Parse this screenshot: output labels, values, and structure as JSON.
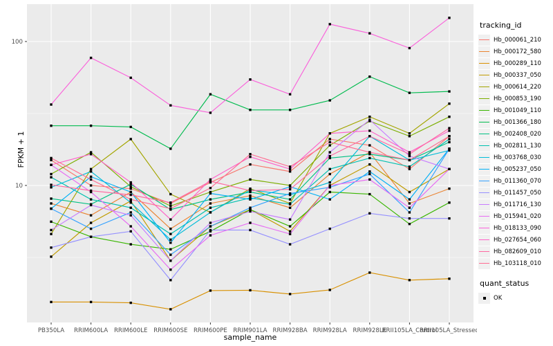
{
  "chart_data": {
    "type": "line",
    "title": "",
    "xlabel": "sample_name",
    "ylabel": "FPKM + 1",
    "y_scale": "log10",
    "ylim": [
      1.12,
      181
    ],
    "y_major_ticks": [
      10,
      100
    ],
    "y_tick_labels": [
      "10",
      "100"
    ],
    "y_minor_ticks": [
      3.162,
      31.62
    ],
    "grid": true,
    "panel_bg": "#EBEBEB",
    "grid_color": "#FFFFFF",
    "axis_text_color": "#4D4D4D",
    "point_shape": "black-square",
    "legend_position": "right",
    "legend_title": "tracking_id",
    "legend2_title": "quant_status",
    "quant_status_items": [
      "OK"
    ],
    "x_categories": [
      "PB350LA",
      "RRIM600LA",
      "RRIM600LE",
      "RRIM600SE",
      "RRIM600PE",
      "RRIM901LA",
      "RRIM928BA",
      "RRIM928LA",
      "RRIM928LE",
      "RRII105LA_Control",
      "RRII105LA_Stressed"
    ],
    "series": [
      {
        "name": "Hb_000061_210",
        "color": "#F8766D",
        "values": [
          15,
          10,
          9.5,
          7.5,
          10.5,
          14,
          12.5,
          21,
          19,
          13,
          22
        ]
      },
      {
        "name": "Hb_000172_580",
        "color": "#EA8331",
        "values": [
          7.5,
          6.2,
          9,
          5,
          7.5,
          8.5,
          7,
          12,
          17,
          7.5,
          9.5
        ]
      },
      {
        "name": "Hb_000289_110",
        "color": "#D89000",
        "values": [
          1.55,
          1.55,
          1.53,
          1.38,
          1.86,
          1.87,
          1.76,
          1.88,
          2.48,
          2.2,
          2.25
        ]
      },
      {
        "name": "Hb_000337_050",
        "color": "#C09B00",
        "values": [
          3.2,
          5.5,
          7.8,
          3,
          5.2,
          6.8,
          4.8,
          10,
          14,
          9,
          13
        ]
      },
      {
        "name": "Hb_000614_220",
        "color": "#A3A500",
        "values": [
          4.6,
          13,
          21,
          8.7,
          6.5,
          9.5,
          7.5,
          23,
          30,
          23,
          37
        ]
      },
      {
        "name": "Hb_000853_190",
        "color": "#7CAE00",
        "values": [
          12,
          17,
          9.8,
          7.2,
          9,
          11,
          10,
          19,
          28,
          22,
          30
        ]
      },
      {
        "name": "Hb_001049_110",
        "color": "#39B600",
        "values": [
          5.6,
          4.4,
          3.9,
          3.6,
          4.8,
          6.8,
          5.2,
          9,
          8.7,
          5.4,
          7.6
        ]
      },
      {
        "name": "Hb_001366_180",
        "color": "#00BB4E",
        "values": [
          26,
          26,
          25.5,
          18,
          43,
          33.5,
          33.5,
          39,
          57,
          44,
          45
        ]
      },
      {
        "name": "Hb_002408_020",
        "color": "#00C083",
        "values": [
          8.1,
          7.4,
          10.2,
          6.8,
          8,
          9,
          8,
          15.5,
          16.5,
          15,
          20
        ]
      },
      {
        "name": "Hb_002811_130",
        "color": "#00C0AF",
        "values": [
          11.4,
          8,
          7,
          4.6,
          7,
          8.2,
          7.4,
          13,
          15.5,
          13.5,
          21
        ]
      },
      {
        "name": "Hb_003768_030",
        "color": "#00BCD8",
        "values": [
          9.7,
          12.5,
          7.6,
          4.2,
          6.5,
          9.3,
          8.6,
          10.5,
          22,
          15,
          17.5
        ]
      },
      {
        "name": "Hb_005237_050",
        "color": "#00B0F6",
        "values": [
          6.9,
          11.5,
          9,
          4,
          8.8,
          8,
          9.8,
          8,
          12.5,
          8,
          18
        ]
      },
      {
        "name": "Hb_011360_070",
        "color": "#35A2FF",
        "values": [
          6.9,
          5,
          6.5,
          3.3,
          5.2,
          7,
          8.8,
          9.7,
          12,
          6.5,
          18
        ]
      },
      {
        "name": "Hb_011457_050",
        "color": "#9590FF",
        "values": [
          3.7,
          4.4,
          4.8,
          2.2,
          4.9,
          4.9,
          3.9,
          5,
          6.4,
          5.9,
          5.9
        ]
      },
      {
        "name": "Hb_011716_130",
        "color": "#C77CFF",
        "values": [
          4.9,
          7.3,
          6.2,
          3,
          5.5,
          6.6,
          5.8,
          17,
          28.6,
          16,
          13
        ]
      },
      {
        "name": "Hb_015941_020",
        "color": "#E76BF3",
        "values": [
          13.9,
          9,
          5.2,
          2.6,
          4.5,
          5.5,
          4.6,
          10,
          11,
          7,
          13
        ]
      },
      {
        "name": "Hb_018133_090",
        "color": "#FA62DB",
        "values": [
          36.5,
          77,
          56,
          36,
          32,
          54.5,
          43,
          132,
          114,
          90,
          146
        ]
      },
      {
        "name": "Hb_027654_060",
        "color": "#FF61C9",
        "values": [
          13.9,
          16.5,
          10.5,
          5.8,
          11,
          15.8,
          13,
          23,
          24,
          17,
          24
        ]
      },
      {
        "name": "Hb_082609_010",
        "color": "#FF68A1",
        "values": [
          10.1,
          9.2,
          8.6,
          7.6,
          10.7,
          9.2,
          9.4,
          16,
          22,
          16.5,
          25
        ]
      },
      {
        "name": "Hb_103118_010",
        "color": "#FF6C92",
        "values": [
          15.5,
          11,
          8,
          6.9,
          9.6,
          16.5,
          13.5,
          20,
          17,
          15,
          22
        ]
      }
    ]
  }
}
